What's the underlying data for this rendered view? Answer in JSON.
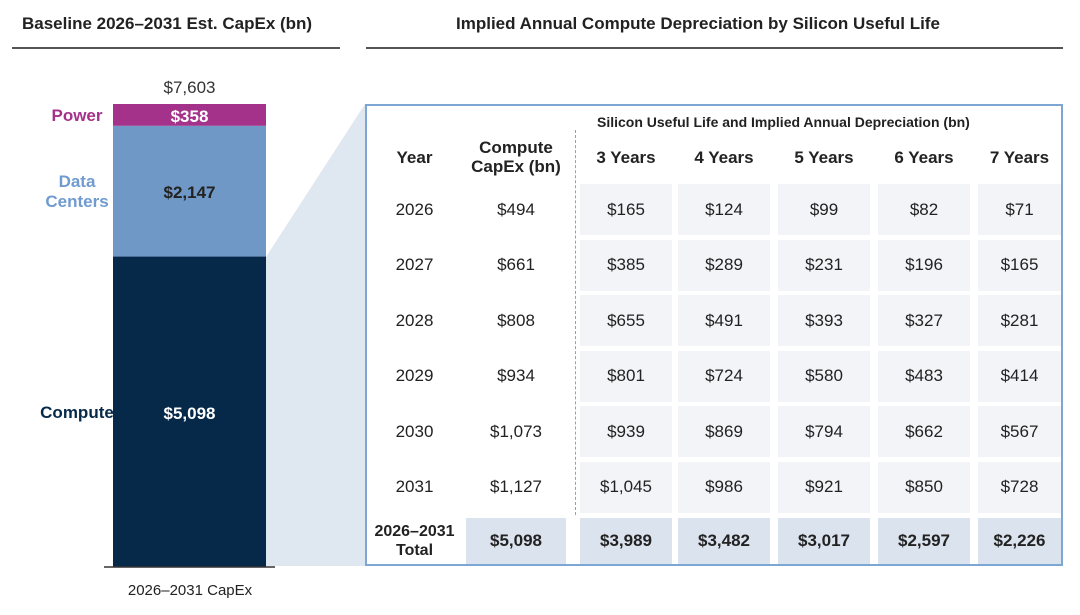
{
  "left_title": "Baseline 2026–2031 Est. CapEx (bn)",
  "right_title": "Implied Annual Compute Depreciation by Silicon Useful Life",
  "chart_data": [
    {
      "type": "bar",
      "stacked": true,
      "categories": [
        "2026–2031 CapEx"
      ],
      "total_label": "$7,603",
      "total": 7603,
      "series": [
        {
          "name": "Compute",
          "values": [
            5098
          ],
          "label": "$5,098",
          "color": "#06294a"
        },
        {
          "name": "Data Centers",
          "values": [
            2147
          ],
          "label": "$2,147",
          "color": "#7098c6"
        },
        {
          "name": "Power",
          "values": [
            358
          ],
          "label": "$358",
          "color": "#a4318a"
        }
      ],
      "series_label_colors": [
        "#06294a",
        "#6f9bd0",
        "#a4318a"
      ],
      "ylim": [
        0,
        7603
      ]
    },
    {
      "type": "table",
      "super_header": "Silicon Useful Life and Implied Annual Depreciation (bn)",
      "columns": [
        "Year",
        "Compute CapEx (bn)",
        "3 Years",
        "4 Years",
        "5 Years",
        "6 Years",
        "7 Years"
      ],
      "rows": [
        [
          "2026",
          "$494",
          "$165",
          "$124",
          "$99",
          "$82",
          "$71"
        ],
        [
          "2027",
          "$661",
          "$385",
          "$289",
          "$231",
          "$196",
          "$165"
        ],
        [
          "2028",
          "$808",
          "$655",
          "$491",
          "$393",
          "$327",
          "$281"
        ],
        [
          "2029",
          "$934",
          "$801",
          "$724",
          "$580",
          "$483",
          "$414"
        ],
        [
          "2030",
          "$1,073",
          "$939",
          "$869",
          "$794",
          "$662",
          "$567"
        ],
        [
          "2031",
          "$1,127",
          "$1,045",
          "$986",
          "$921",
          "$850",
          "$728"
        ]
      ],
      "total_row": [
        "2026–2031 Total",
        "$5,098",
        "$3,989",
        "$3,482",
        "$3,017",
        "$2,597",
        "$2,226"
      ]
    }
  ]
}
